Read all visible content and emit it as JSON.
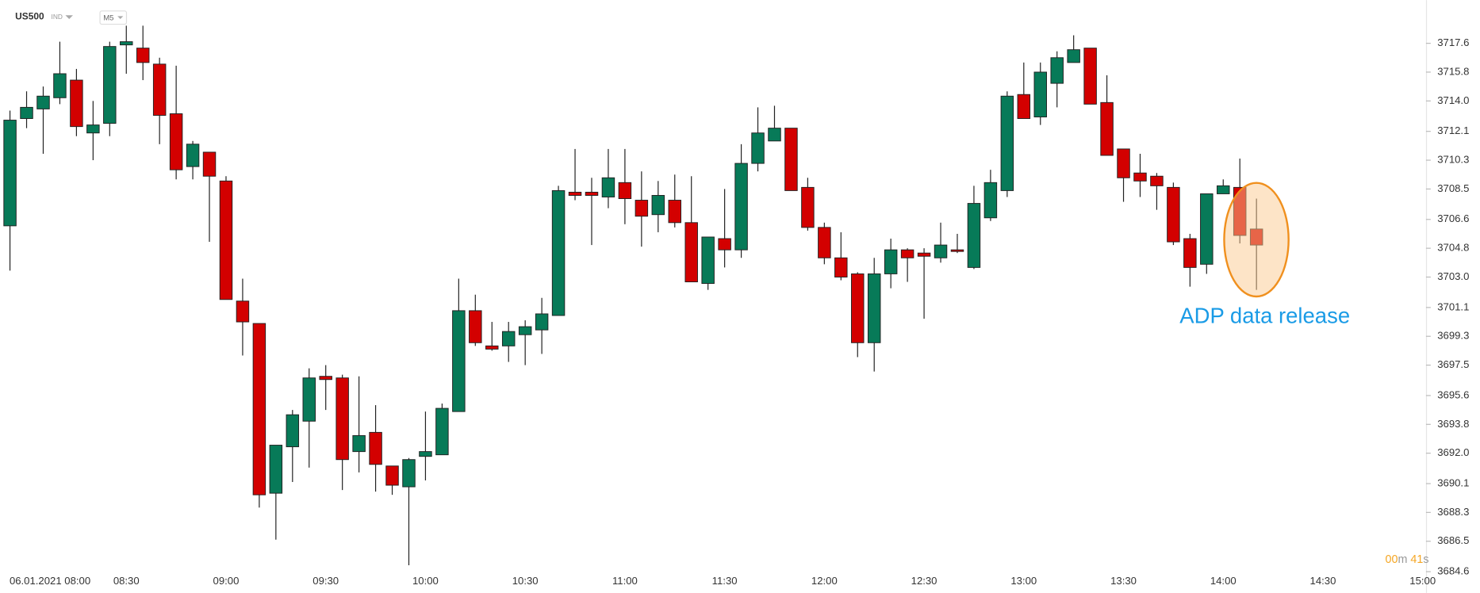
{
  "header": {
    "symbol": "US500",
    "market": "IND",
    "interval": "M5"
  },
  "annotation": "ADP data release",
  "timer": {
    "minutes": "00",
    "minutes_unit": "m",
    "seconds": "41",
    "seconds_unit": "s"
  },
  "chart_data": {
    "type": "candlestick",
    "x": [
      "07:55",
      "08:00",
      "08:05",
      "08:10",
      "08:15",
      "08:20",
      "08:25",
      "08:30",
      "08:35",
      "08:40",
      "08:45",
      "08:50",
      "08:55",
      "09:00",
      "09:05",
      "09:10",
      "09:15",
      "09:20",
      "09:25",
      "09:30",
      "09:35",
      "09:40",
      "09:45",
      "09:50",
      "09:55",
      "10:00",
      "10:05",
      "10:10",
      "10:15",
      "10:20",
      "10:25",
      "10:30",
      "10:35",
      "10:40",
      "10:45",
      "10:50",
      "10:55",
      "11:00",
      "11:05",
      "11:10",
      "11:15",
      "11:20",
      "11:25",
      "11:30",
      "11:35",
      "11:40",
      "11:45",
      "11:50",
      "11:55",
      "12:00",
      "12:05",
      "12:10",
      "12:15",
      "12:20",
      "12:25",
      "12:30",
      "12:35",
      "12:40",
      "12:45",
      "12:50",
      "12:55",
      "13:00",
      "13:05",
      "13:10",
      "13:15",
      "13:20",
      "13:25",
      "13:30",
      "13:35",
      "13:40",
      "13:45",
      "13:50",
      "13:55",
      "14:00",
      "14:05",
      "14:10"
    ],
    "open": [
      3706.2,
      3712.9,
      3713.5,
      3714.2,
      3715.3,
      3712.0,
      3712.6,
      3717.5,
      3717.3,
      3716.3,
      3713.2,
      3709.9,
      3710.8,
      3709.0,
      3701.5,
      3700.1,
      3689.5,
      3692.4,
      3694.0,
      3696.8,
      3696.7,
      3692.1,
      3693.3,
      3691.2,
      3689.9,
      3691.8,
      3691.9,
      3694.6,
      3700.9,
      3698.7,
      3698.7,
      3699.4,
      3699.7,
      3700.6,
      3708.3,
      3708.3,
      3708.0,
      3708.9,
      3707.8,
      3706.9,
      3707.8,
      3706.4,
      3702.6,
      3705.4,
      3704.7,
      3710.1,
      3711.5,
      3712.3,
      3708.6,
      3706.1,
      3704.2,
      3703.2,
      3698.9,
      3703.2,
      3704.7,
      3704.5,
      3704.2,
      3704.7,
      3703.6,
      3706.7,
      3708.4,
      3714.4,
      3713.0,
      3715.1,
      3716.4,
      3717.3,
      3713.9,
      3711.0,
      3709.5,
      3709.3,
      3708.6,
      3705.4,
      3703.8,
      3708.2,
      3708.6,
      3706.0
    ],
    "high": [
      3713.4,
      3714.6,
      3714.9,
      3717.7,
      3716.0,
      3714.0,
      3717.7,
      3718.7,
      3718.7,
      3716.7,
      3716.2,
      3711.5,
      3710.8,
      3709.3,
      3702.9,
      3700.1,
      3692.5,
      3694.7,
      3697.3,
      3697.5,
      3696.9,
      3696.8,
      3695.0,
      3691.2,
      3691.7,
      3694.6,
      3695.1,
      3702.9,
      3701.9,
      3700.2,
      3700.2,
      3700.3,
      3701.7,
      3708.7,
      3711.0,
      3709.2,
      3711.0,
      3711.0,
      3709.6,
      3709.0,
      3709.4,
      3709.3,
      3705.5,
      3708.5,
      3711.3,
      3713.6,
      3713.7,
      3712.3,
      3709.2,
      3706.4,
      3705.8,
      3703.3,
      3704.2,
      3705.4,
      3704.8,
      3704.8,
      3706.4,
      3705.7,
      3708.7,
      3709.7,
      3714.6,
      3716.4,
      3716.4,
      3717.1,
      3718.1,
      3717.3,
      3715.6,
      3711.0,
      3710.7,
      3709.5,
      3708.9,
      3705.7,
      3708.2,
      3709.1,
      3710.4,
      3707.9
    ],
    "low": [
      3703.4,
      3712.3,
      3710.7,
      3713.8,
      3711.8,
      3710.3,
      3711.8,
      3715.7,
      3715.3,
      3711.3,
      3709.1,
      3709.1,
      3705.2,
      3701.6,
      3698.1,
      3688.6,
      3686.6,
      3690.2,
      3691.1,
      3694.7,
      3689.7,
      3690.8,
      3689.6,
      3689.4,
      3685.0,
      3690.3,
      3691.9,
      3694.6,
      3698.7,
      3698.4,
      3697.7,
      3697.5,
      3698.2,
      3700.6,
      3707.8,
      3705.0,
      3707.3,
      3706.3,
      3704.9,
      3705.8,
      3706.1,
      3702.7,
      3702.2,
      3703.6,
      3704.2,
      3709.6,
      3711.5,
      3708.4,
      3705.9,
      3703.8,
      3702.8,
      3698.0,
      3697.1,
      3702.3,
      3702.7,
      3700.4,
      3703.9,
      3704.5,
      3703.5,
      3706.5,
      3708.0,
      3712.9,
      3712.5,
      3713.6,
      3716.4,
      3713.8,
      3710.6,
      3707.7,
      3708.0,
      3707.2,
      3705.0,
      3702.4,
      3703.2,
      3708.2,
      3705.1,
      3702.2
    ],
    "close": [
      3712.8,
      3713.6,
      3714.3,
      3715.7,
      3712.4,
      3712.5,
      3717.4,
      3717.7,
      3716.4,
      3713.1,
      3709.7,
      3711.3,
      3709.3,
      3701.6,
      3700.2,
      3689.4,
      3692.5,
      3694.4,
      3696.7,
      3696.6,
      3691.6,
      3693.1,
      3691.3,
      3690.0,
      3691.6,
      3692.1,
      3694.8,
      3700.9,
      3698.9,
      3698.5,
      3699.6,
      3699.9,
      3700.7,
      3708.4,
      3708.1,
      3708.1,
      3709.2,
      3707.9,
      3706.8,
      3708.1,
      3706.4,
      3702.7,
      3705.5,
      3704.7,
      3710.1,
      3712.0,
      3712.3,
      3708.4,
      3706.1,
      3704.2,
      3703.0,
      3698.9,
      3703.2,
      3704.7,
      3704.2,
      3704.3,
      3705.0,
      3704.6,
      3707.6,
      3708.9,
      3714.3,
      3712.9,
      3715.8,
      3716.7,
      3717.2,
      3713.8,
      3710.6,
      3709.2,
      3709.0,
      3708.7,
      3705.2,
      3703.6,
      3708.2,
      3708.7,
      3705.6,
      3705.0
    ],
    "up_color": "#077a58",
    "down_color": "#d30000",
    "xlim": [
      "07:52",
      "15:01"
    ],
    "xticks": [
      {
        "value": "08:00",
        "label": "06.01.2021 08:00"
      },
      "08:30",
      "09:00",
      "09:30",
      "10:00",
      "10:30",
      "11:00",
      "11:30",
      "12:00",
      "12:30",
      "13:00",
      "13:30",
      "14:00",
      "14:30",
      "15:00"
    ],
    "ylim": [
      3684.1,
      3720.3
    ],
    "yticks": [
      3717.6,
      3715.8,
      {
        "value": 3714,
        "label": "3714.0"
      },
      3712.1,
      3710.3,
      3708.5,
      3706.6,
      3704.8,
      {
        "value": 3703,
        "label": "3703.0"
      },
      3701.1,
      3699.3,
      3697.5,
      3695.6,
      3693.8,
      {
        "value": 3692,
        "label": "3692.0"
      },
      3690.1,
      3688.3,
      3686.5,
      3684.6
    ],
    "grid": false
  }
}
